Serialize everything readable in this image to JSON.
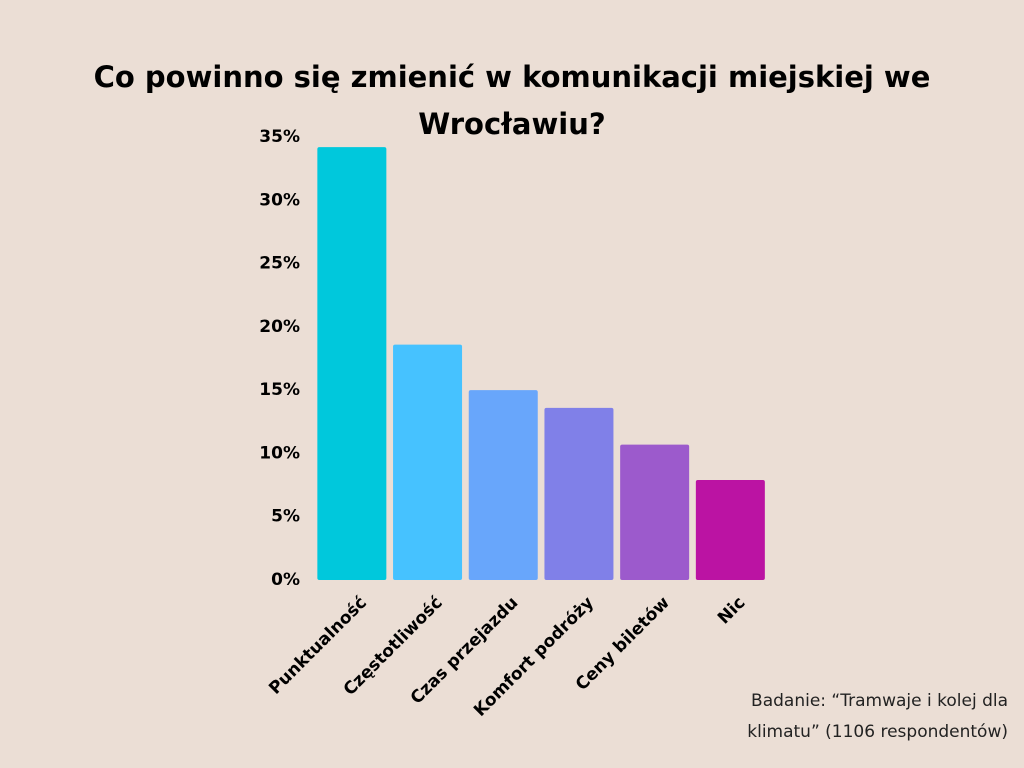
{
  "chart_data": {
    "type": "bar",
    "title": "Co powinno się zmienić w komunikacji miejskiej we Wrocławiu?",
    "note": "Badanie: “Tramwaje i kolej dla klimatu” (1106 respondentów)",
    "categories": [
      "Punktualność",
      "Częstotliwość",
      "Czas przejazdu",
      "Komfort podróży",
      "Ceny biletów",
      "Nic"
    ],
    "values": [
      34.2,
      18.6,
      15.0,
      13.6,
      10.7,
      7.9
    ],
    "colors": [
      "#00c8dc",
      "#46c2ff",
      "#68a6fb",
      "#8080e8",
      "#9c5acc",
      "#bb13a3"
    ],
    "ylim": [
      0,
      35
    ],
    "yticks": [
      {
        "value": 0,
        "label": "0%"
      },
      {
        "value": 5,
        "label": "5%"
      },
      {
        "value": 10,
        "label": "10%"
      },
      {
        "value": 15,
        "label": "15%"
      },
      {
        "value": 20,
        "label": "20%"
      },
      {
        "value": 25,
        "label": "25%"
      },
      {
        "value": 30,
        "label": "30%"
      },
      {
        "value": 35,
        "label": "35%"
      }
    ],
    "grid": false
  }
}
